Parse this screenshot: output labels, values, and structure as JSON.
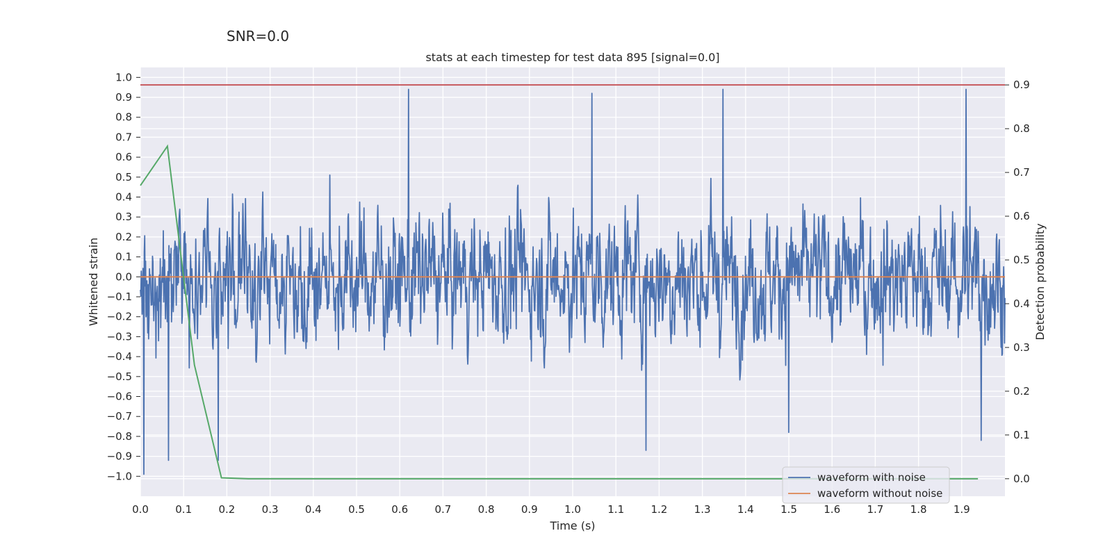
{
  "suptitle": "SNR=0.0",
  "chart_data": {
    "type": "line",
    "title": "stats at each timestep for test data 895 [signal=0.0]",
    "xlabel": "Time (s)",
    "ylabel": "Whitened strain",
    "y2label": "Detection probability",
    "xlim": [
      0.0,
      2.0
    ],
    "ylim": [
      -1.1,
      1.05
    ],
    "y2lim": [
      -0.04,
      0.94
    ],
    "xticks": [
      "0.0",
      "0.1",
      "0.2",
      "0.3",
      "0.4",
      "0.5",
      "0.6",
      "0.7",
      "0.8",
      "0.9",
      "1.0",
      "1.1",
      "1.2",
      "1.3",
      "1.4",
      "1.5",
      "1.6",
      "1.7",
      "1.8",
      "1.9"
    ],
    "yticks": [
      "1.0",
      "0.9",
      "0.8",
      "0.7",
      "0.6",
      "0.5",
      "0.4",
      "0.3",
      "0.2",
      "0.1",
      "0.0",
      "−0.1",
      "−0.2",
      "−0.3",
      "−0.4",
      "−0.5",
      "−0.6",
      "−0.7",
      "−0.8",
      "−0.9",
      "−1.0"
    ],
    "y2ticks": [
      "0.9",
      "0.8",
      "0.7",
      "0.6",
      "0.5",
      "0.4",
      "0.3",
      "0.2",
      "0.1",
      "0.0"
    ],
    "grid": true,
    "legend_position": "lower-right",
    "legend": [
      "waveform with noise",
      "waveform without noise"
    ],
    "colors": {
      "noise": "#4c72b0",
      "clean": "#dd8452",
      "probability": "#55a868",
      "threshold": "#c44e52",
      "axes_bg": "#eaeaf2",
      "grid": "#ffffff",
      "text": "#262626"
    },
    "series": [
      {
        "name": "waveform with noise",
        "axis": "left",
        "note": "dense noise trace, approx. 2000 samples, amplitude mostly within ±0.5, peaks near 0.94",
        "sample_count": 2000,
        "y_range": [
          -0.99,
          0.95
        ]
      },
      {
        "name": "waveform without noise",
        "axis": "left",
        "x": [
          0.0,
          2.0
        ],
        "y": [
          0.0,
          0.0
        ]
      },
      {
        "name": "Detection probability",
        "axis": "right",
        "x": [
          0.0,
          0.0625,
          0.125,
          0.1875,
          0.25,
          0.3125,
          0.375,
          1.9375
        ],
        "y": [
          0.67,
          0.76,
          0.26,
          0.002,
          0.0,
          0.0,
          0.0,
          0.0
        ]
      },
      {
        "name": "threshold",
        "axis": "right",
        "x": [
          0.0,
          2.0
        ],
        "y": [
          0.9,
          0.9
        ]
      }
    ],
    "noise_peaks": [
      {
        "x": 0.62,
        "y": 0.94
      },
      {
        "x": 1.045,
        "y": 0.92
      },
      {
        "x": 1.348,
        "y": 0.94
      },
      {
        "x": 1.91,
        "y": 0.94
      },
      {
        "x": 0.008,
        "y": -0.99
      },
      {
        "x": 0.065,
        "y": -0.92
      },
      {
        "x": 0.18,
        "y": -0.92
      },
      {
        "x": 1.17,
        "y": -0.87
      },
      {
        "x": 1.945,
        "y": -0.82
      },
      {
        "x": 1.5,
        "y": -0.78
      }
    ]
  }
}
